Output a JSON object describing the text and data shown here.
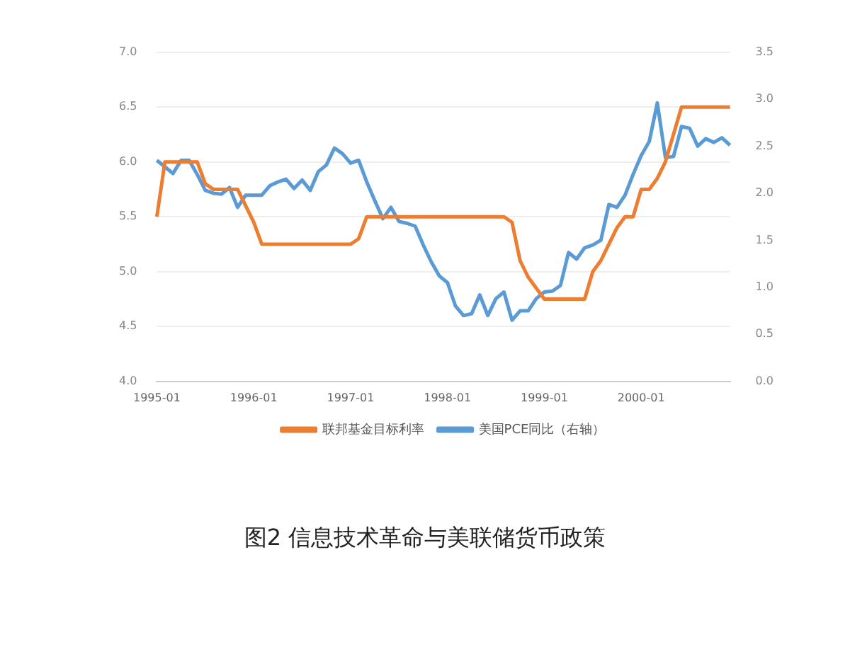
{
  "chart_data": {
    "type": "line",
    "title": "图2 信息技术革命与美联储货币政策",
    "categories": [
      "1995-01",
      null,
      null,
      null,
      null,
      null,
      null,
      null,
      null,
      null,
      null,
      null,
      "1996-01",
      null,
      null,
      null,
      null,
      null,
      null,
      null,
      null,
      null,
      null,
      null,
      "1997-01",
      null,
      null,
      null,
      null,
      null,
      null,
      null,
      null,
      null,
      null,
      null,
      "1998-01",
      null,
      null,
      null,
      null,
      null,
      null,
      null,
      null,
      null,
      null,
      null,
      "1999-01",
      null,
      null,
      null,
      null,
      null,
      null,
      null,
      null,
      null,
      null,
      null,
      "2000-01",
      null,
      null,
      null,
      null,
      null,
      null,
      null,
      null,
      null,
      null,
      null
    ],
    "series": [
      {
        "name": "联邦基金目标利率",
        "color": "#ed7d31",
        "values": [
          5.5,
          6.0,
          6.0,
          6.0,
          6.0,
          6.0,
          5.8,
          5.75,
          5.75,
          5.75,
          5.75,
          5.6,
          5.45,
          5.25,
          5.25,
          5.25,
          5.25,
          5.25,
          5.25,
          5.25,
          5.25,
          5.25,
          5.25,
          5.25,
          5.25,
          5.3,
          5.5,
          5.5,
          5.5,
          5.5,
          5.5,
          5.5,
          5.5,
          5.5,
          5.5,
          5.5,
          5.5,
          5.5,
          5.5,
          5.5,
          5.5,
          5.5,
          5.5,
          5.5,
          5.45,
          5.1,
          4.95,
          4.85,
          4.75,
          4.75,
          4.75,
          4.75,
          4.75,
          4.75,
          5.0,
          5.1,
          5.25,
          5.4,
          5.5,
          5.5,
          5.75,
          5.75,
          5.85,
          6.0,
          6.25,
          6.5,
          6.5,
          6.5,
          6.5,
          6.5,
          6.5,
          6.5
        ]
      },
      {
        "name": "美国PCE同比（右轴）",
        "color": "#5b9bd5",
        "axis": "y2",
        "values": [
          2.35,
          2.28,
          2.21,
          2.35,
          2.35,
          2.2,
          2.03,
          2.0,
          1.99,
          2.06,
          1.85,
          1.98,
          1.98,
          1.98,
          2.08,
          2.12,
          2.15,
          2.05,
          2.14,
          2.03,
          2.23,
          2.3,
          2.48,
          2.42,
          2.32,
          2.35,
          2.12,
          1.92,
          1.73,
          1.85,
          1.7,
          1.68,
          1.65,
          1.45,
          1.27,
          1.12,
          1.05,
          0.8,
          0.7,
          0.72,
          0.92,
          0.7,
          0.88,
          0.95,
          0.65,
          0.75,
          0.75,
          0.88,
          0.95,
          0.96,
          1.02,
          1.37,
          1.3,
          1.42,
          1.45,
          1.5,
          1.88,
          1.85,
          1.98,
          2.2,
          2.4,
          2.55,
          2.96,
          2.38,
          2.39,
          2.71,
          2.69,
          2.5,
          2.58,
          2.54,
          2.59,
          2.51
        ]
      }
    ],
    "ylim": [
      4,
      7
    ],
    "yticks": [
      {
        "value": 4,
        "label": "4.0"
      },
      {
        "value": 4.5,
        "label": "4.5"
      },
      {
        "value": 5,
        "label": "5.0"
      },
      {
        "value": 5.5,
        "label": "5.5"
      },
      {
        "value": 6,
        "label": "6.0"
      },
      {
        "value": 6.5,
        "label": "6.5"
      },
      {
        "value": 7,
        "label": "7.0"
      }
    ],
    "y2lim": [
      0,
      3.5
    ],
    "y2ticks": [
      {
        "value": 0,
        "label": "0.0"
      },
      {
        "value": 0.5,
        "label": "0.5"
      },
      {
        "value": 1,
        "label": "1.0"
      },
      {
        "value": 1.5,
        "label": "1.5"
      },
      {
        "value": 2,
        "label": "2.0"
      },
      {
        "value": 2.5,
        "label": "2.5"
      },
      {
        "value": 3,
        "label": "3.0"
      },
      {
        "value": 3.5,
        "label": "3.5"
      }
    ],
    "grid": "y",
    "legend": "bottom",
    "marker": "none",
    "line_style": "solid"
  }
}
